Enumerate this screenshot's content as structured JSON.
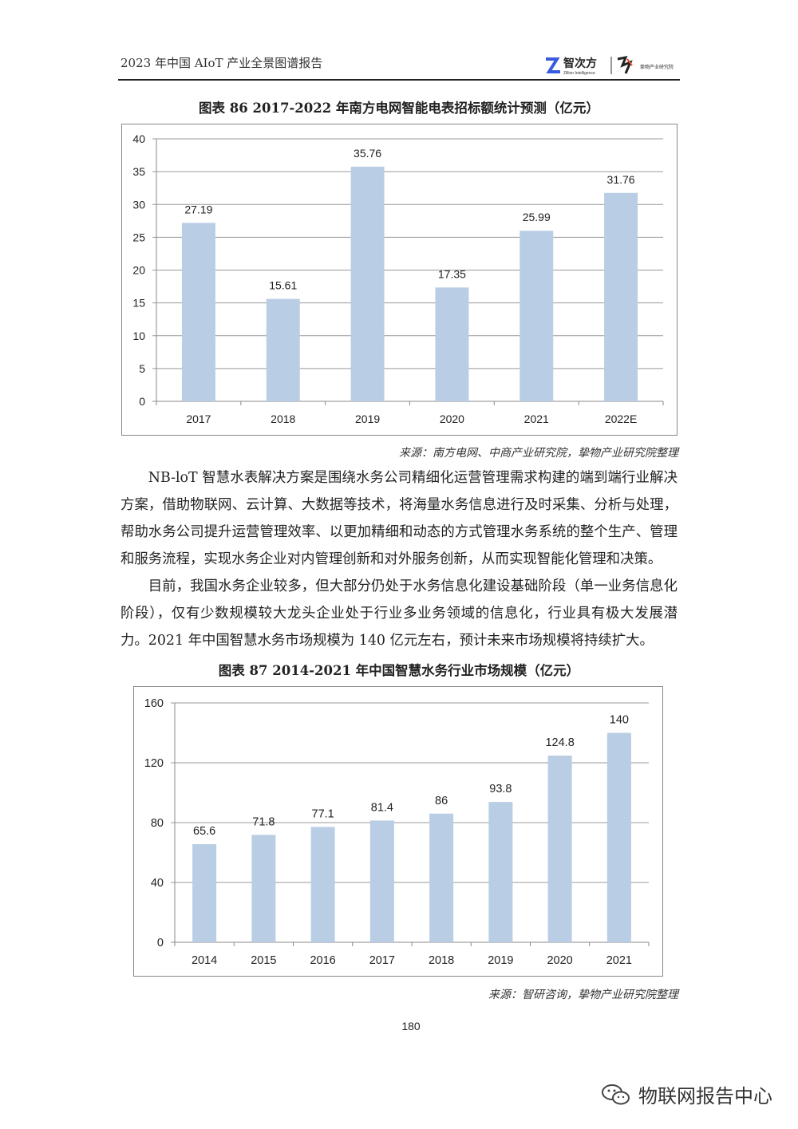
{
  "header": {
    "title": "2023 年中国 AIoT 产业全景图谱报告",
    "logo_text": "智次方",
    "logo_subtext": "Zillion Intelligence",
    "logo2_text": "挚物产业研究院"
  },
  "figure86": {
    "title": "图表 86   2017-2022 年南方电网智能电表招标额统计预测（亿元）",
    "source": "来源：南方电网、中商产业研究院，挚物产业研究院整理"
  },
  "paragraphs": [
    "NB-loT 智慧水表解决方案是围绕水务公司精细化运营管理需求构建的端到端行业解决方案，借助物联网、云计算、大数据等技术，将海量水务信息进行及时采集、分析与处理，帮助水务公司提升运营管理效率、以更加精细和动态的方式管理水务系统的整个生产、管理和服务流程，实现水务企业对内管理创新和对外服务创新，从而实现智能化管理和决策。",
    "目前，我国水务企业较多，但大部分仍处于水务信息化建设基础阶段（单一业务信息化阶段），仅有少数规模较大龙头企业处于行业多业务领域的信息化，行业具有极大发展潜力。2021 年中国智慧水务市场规模为 140 亿元左右，预计未来市场规模将持续扩大。"
  ],
  "figure87": {
    "title": "图表 87   2014-2021 年中国智慧水务行业市场规模（亿元）",
    "source": "来源：智研咨询，挚物产业研究院整理"
  },
  "page_number": "180",
  "watermark": {
    "text": "物联网报告中心",
    "icon": "wechat-icon"
  },
  "chart_data": [
    {
      "type": "bar",
      "categories": [
        "2017",
        "2018",
        "2019",
        "2020",
        "2021",
        "2022E"
      ],
      "values": [
        27.19,
        15.61,
        35.76,
        17.35,
        25.99,
        31.76
      ],
      "ylim": [
        0,
        40
      ],
      "yticks": [
        0,
        5,
        10,
        15,
        20,
        25,
        30,
        35,
        40
      ],
      "grid": true,
      "bar_color": "#b9cde4",
      "data_labels": [
        "27.19",
        "15.61",
        "35.76",
        "17.35",
        "25.99",
        "31.76"
      ]
    },
    {
      "type": "bar",
      "categories": [
        "2014",
        "2015",
        "2016",
        "2017",
        "2018",
        "2019",
        "2020",
        "2021"
      ],
      "values": [
        65.6,
        71.8,
        77.1,
        81.4,
        86,
        93.8,
        124.8,
        140
      ],
      "ylim": [
        0,
        160
      ],
      "yticks": [
        0,
        40,
        80,
        120,
        160
      ],
      "grid": true,
      "bar_color": "#b9cde4",
      "data_labels": [
        "65.6",
        "71.8",
        "77.1",
        "81.4",
        "86",
        "93.8",
        "124.8",
        "140"
      ]
    }
  ]
}
